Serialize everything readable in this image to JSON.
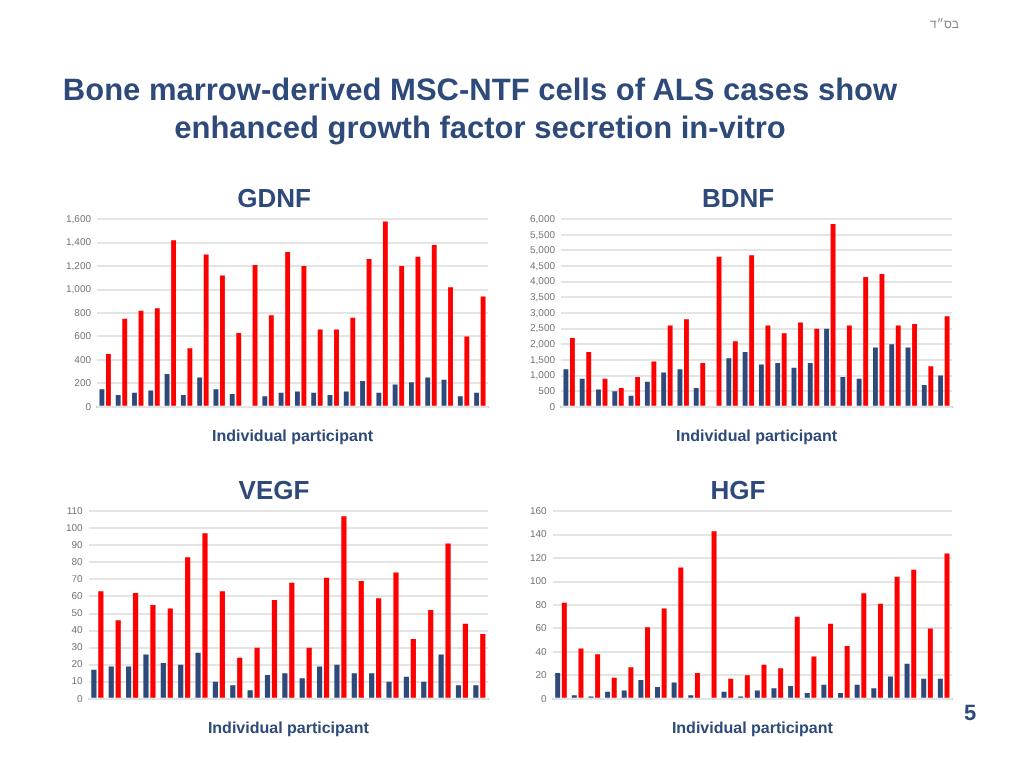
{
  "chart_data": [
    {
      "type": "bar",
      "title": "GDNF",
      "xlabel": "Individual participant",
      "annotations": [
        "Bone marrow-derived MSC-NTF cells of ALS cases show enhanced growth factor secretion in-vitro"
      ],
      "categories": [
        null,
        null,
        null,
        null,
        null,
        null,
        null,
        null,
        null,
        null,
        null,
        null,
        null,
        null,
        null,
        null,
        null,
        null,
        null,
        null,
        null,
        null,
        null,
        null
      ],
      "grid": "y",
      "ylim": [
        0,
        1600
      ],
      "yticks": [
        0,
        200,
        400,
        600,
        800,
        {
          "value": 1000,
          "label": "1,000"
        },
        {
          "value": 1200,
          "label": "1,200"
        },
        {
          "value": 1400,
          "label": "1,400"
        },
        {
          "value": 1600,
          "label": "1,600"
        }
      ],
      "series": [
        {
          "color": "#2e4a7a",
          "values": [
            150,
            100,
            120,
            140,
            280,
            100,
            250,
            150,
            110,
            null,
            90,
            120,
            130,
            120,
            100,
            130,
            220,
            120,
            190,
            210,
            250,
            230,
            90,
            120
          ]
        },
        {
          "color": "#ff0000",
          "values": [
            450,
            750,
            820,
            840,
            1420,
            500,
            1300,
            1120,
            630,
            1210,
            780,
            1320,
            1200,
            660,
            660,
            760,
            1260,
            1580,
            1200,
            1280,
            1380,
            1020,
            600,
            940
          ]
        }
      ]
    },
    {
      "type": "bar",
      "title": "BDNF",
      "xlabel": "Individual participant",
      "annotations": [
        "בס״ד"
      ],
      "categories": [
        null,
        null,
        null,
        null,
        null,
        null,
        null,
        null,
        null,
        null,
        null,
        null,
        null,
        null,
        null,
        null,
        null,
        null,
        null,
        null,
        null,
        null,
        null,
        null
      ],
      "grid": "y",
      "ylim": [
        0,
        6000
      ],
      "yticks": [
        0,
        500,
        {
          "value": 1000,
          "label": "1,000"
        },
        {
          "value": 1500,
          "label": "1,500"
        },
        {
          "value": 2000,
          "label": "2,000"
        },
        {
          "value": 2500,
          "label": "2,500"
        },
        {
          "value": 3000,
          "label": "3,000"
        },
        {
          "value": 3500,
          "label": "3,500"
        },
        {
          "value": 4000,
          "label": "4,000"
        },
        {
          "value": 4500,
          "label": "4,500"
        },
        {
          "value": 5000,
          "label": "5,000"
        },
        {
          "value": 5500,
          "label": "5,500"
        },
        {
          "value": 6000,
          "label": "6,000"
        }
      ],
      "series": [
        {
          "color": "#2e4a7a",
          "values": [
            1200,
            900,
            550,
            500,
            350,
            800,
            1100,
            1200,
            600,
            null,
            1550,
            1750,
            1350,
            1400,
            1250,
            1400,
            2500,
            950,
            900,
            1900,
            2000,
            1900,
            700,
            1000
          ]
        },
        {
          "color": "#ff0000",
          "values": [
            2200,
            1750,
            900,
            600,
            950,
            1450,
            2600,
            2800,
            1400,
            4800,
            2100,
            4850,
            2600,
            2350,
            2700,
            2500,
            5850,
            2600,
            4150,
            4250,
            2600,
            2650,
            1300,
            2900
          ]
        }
      ]
    },
    {
      "type": "bar",
      "title": "VEGF",
      "xlabel": "Individual participant",
      "categories": [
        null,
        null,
        null,
        null,
        null,
        null,
        null,
        null,
        null,
        null,
        null,
        null,
        null,
        null,
        null,
        null,
        null,
        null,
        null,
        null,
        null,
        null,
        null
      ],
      "grid": "y",
      "ylim": [
        0,
        110
      ],
      "yticks": [
        0,
        10,
        20,
        30,
        40,
        50,
        60,
        70,
        80,
        90,
        100,
        110
      ],
      "series": [
        {
          "color": "#2e4a7a",
          "values": [
            17,
            19,
            19,
            26,
            21,
            20,
            27,
            10,
            8,
            5,
            14,
            15,
            12,
            19,
            20,
            15,
            15,
            10,
            13,
            10,
            26,
            8,
            8
          ]
        },
        {
          "color": "#ff0000",
          "values": [
            63,
            46,
            62,
            55,
            53,
            83,
            97,
            63,
            24,
            30,
            58,
            68,
            30,
            71,
            107,
            69,
            59,
            74,
            35,
            52,
            91,
            44,
            38
          ]
        }
      ]
    },
    {
      "type": "bar",
      "title": "HGF",
      "xlabel": "Individual participant",
      "annotations": [
        "5"
      ],
      "categories": [
        null,
        null,
        null,
        null,
        null,
        null,
        null,
        null,
        null,
        null,
        null,
        null,
        null,
        null,
        null,
        null,
        null,
        null,
        null,
        null,
        null,
        null,
        null,
        null
      ],
      "grid": "y",
      "ylim": [
        0,
        160
      ],
      "yticks": [
        0,
        20,
        40,
        60,
        80,
        100,
        120,
        140,
        160
      ],
      "series": [
        {
          "color": "#2e4a7a",
          "values": [
            22,
            3,
            2,
            6,
            7,
            16,
            10,
            14,
            3,
            null,
            6,
            2,
            7,
            9,
            11,
            5,
            12,
            5,
            12,
            9,
            19,
            30,
            17,
            17
          ]
        },
        {
          "color": "#ff0000",
          "values": [
            82,
            43,
            38,
            18,
            27,
            61,
            77,
            112,
            22,
            143,
            17,
            20,
            29,
            26,
            70,
            36,
            64,
            45,
            90,
            81,
            104,
            110,
            60,
            124
          ]
        }
      ]
    }
  ]
}
